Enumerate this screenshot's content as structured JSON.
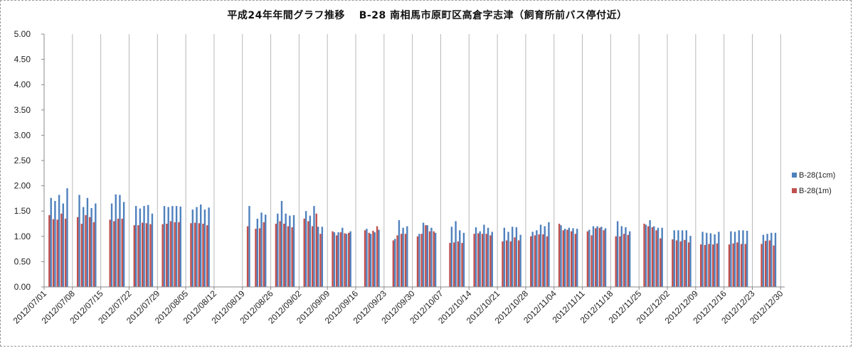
{
  "chart_data": {
    "type": "bar",
    "title": "平成24年年間グラフ推移　 B-28 南相馬市原町区高倉字志津（飼育所前バス停付近）",
    "ylim": [
      0,
      5
    ],
    "y_ticks": [
      "0.00",
      "0.50",
      "1.00",
      "1.50",
      "2.00",
      "2.50",
      "3.00",
      "3.50",
      "4.00",
      "4.50",
      "5.00"
    ],
    "x_ticks": [
      "2012/07/01",
      "2012/07/08",
      "2012/07/15",
      "2012/07/22",
      "2012/07/29",
      "2012/08/05",
      "2012/08/12",
      "2012/08/19",
      "2012/08/26",
      "2012/09/02",
      "2012/09/09",
      "2012/09/16",
      "2012/09/23",
      "2012/09/30",
      "2012/10/07",
      "2012/10/14",
      "2012/10/21",
      "2012/10/28",
      "2012/11/04",
      "2012/11/11",
      "2012/11/18",
      "2012/11/25",
      "2012/12/02",
      "2012/12/09",
      "2012/12/16",
      "2012/12/23",
      "2012/12/30"
    ],
    "x_start": "2012/07/01",
    "x_end": "2012/12/30",
    "grid": "vertical-lines",
    "legend_position": "right",
    "series": [
      {
        "name": "B-28(1cm)",
        "color": "#4f81bd",
        "points": [
          [
            "2012/07/02",
            1.76
          ],
          [
            "2012/07/03",
            1.7
          ],
          [
            "2012/07/04",
            1.82
          ],
          [
            "2012/07/05",
            1.65
          ],
          [
            "2012/07/06",
            1.95
          ],
          [
            "2012/07/09",
            1.82
          ],
          [
            "2012/07/10",
            1.58
          ],
          [
            "2012/07/11",
            1.76
          ],
          [
            "2012/07/12",
            1.56
          ],
          [
            "2012/07/13",
            1.65
          ],
          [
            "2012/07/17",
            1.65
          ],
          [
            "2012/07/18",
            1.83
          ],
          [
            "2012/07/19",
            1.82
          ],
          [
            "2012/07/20",
            1.68
          ],
          [
            "2012/07/23",
            1.6
          ],
          [
            "2012/07/24",
            1.55
          ],
          [
            "2012/07/25",
            1.6
          ],
          [
            "2012/07/26",
            1.62
          ],
          [
            "2012/07/27",
            1.45
          ],
          [
            "2012/07/30",
            1.6
          ],
          [
            "2012/07/31",
            1.58
          ],
          [
            "2012/08/01",
            1.6
          ],
          [
            "2012/08/02",
            1.6
          ],
          [
            "2012/08/03",
            1.59
          ],
          [
            "2012/08/06",
            1.53
          ],
          [
            "2012/08/07",
            1.58
          ],
          [
            "2012/08/08",
            1.63
          ],
          [
            "2012/08/09",
            1.53
          ],
          [
            "2012/08/10",
            1.57
          ],
          [
            "2012/08/20",
            1.6
          ],
          [
            "2012/08/22",
            1.35
          ],
          [
            "2012/08/23",
            1.47
          ],
          [
            "2012/08/24",
            1.43
          ],
          [
            "2012/08/27",
            1.45
          ],
          [
            "2012/08/28",
            1.7
          ],
          [
            "2012/08/29",
            1.45
          ],
          [
            "2012/08/30",
            1.41
          ],
          [
            "2012/08/31",
            1.42
          ],
          [
            "2012/09/03",
            1.5
          ],
          [
            "2012/09/04",
            1.41
          ],
          [
            "2012/09/05",
            1.6
          ],
          [
            "2012/09/06",
            1.19
          ],
          [
            "2012/09/07",
            1.19
          ],
          [
            "2012/09/10",
            1.08
          ],
          [
            "2012/09/11",
            1.08
          ],
          [
            "2012/09/12",
            1.17
          ],
          [
            "2012/09/13",
            1.05
          ],
          [
            "2012/09/14",
            1.1
          ],
          [
            "2012/09/18",
            1.15
          ],
          [
            "2012/09/19",
            1.05
          ],
          [
            "2012/09/20",
            1.08
          ],
          [
            "2012/09/21",
            1.13
          ],
          [
            "2012/09/25",
            0.95
          ],
          [
            "2012/09/26",
            1.32
          ],
          [
            "2012/09/27",
            1.17
          ],
          [
            "2012/09/28",
            1.2
          ],
          [
            "2012/10/01",
            1.05
          ],
          [
            "2012/10/02",
            1.27
          ],
          [
            "2012/10/03",
            1.22
          ],
          [
            "2012/10/04",
            1.17
          ],
          [
            "2012/10/05",
            1.07
          ],
          [
            "2012/10/09",
            1.19
          ],
          [
            "2012/10/10",
            1.3
          ],
          [
            "2012/10/11",
            1.12
          ],
          [
            "2012/10/12",
            1.07
          ],
          [
            "2012/10/15",
            1.18
          ],
          [
            "2012/10/16",
            1.1
          ],
          [
            "2012/10/17",
            1.23
          ],
          [
            "2012/10/18",
            1.17
          ],
          [
            "2012/10/19",
            1.09
          ],
          [
            "2012/10/22",
            1.17
          ],
          [
            "2012/10/23",
            1.09
          ],
          [
            "2012/10/24",
            1.19
          ],
          [
            "2012/10/25",
            1.18
          ],
          [
            "2012/10/26",
            1.03
          ],
          [
            "2012/10/29",
            1.09
          ],
          [
            "2012/10/30",
            1.12
          ],
          [
            "2012/10/31",
            1.23
          ],
          [
            "2012/11/01",
            1.2
          ],
          [
            "2012/11/02",
            1.28
          ],
          [
            "2012/11/05",
            1.22
          ],
          [
            "2012/11/06",
            1.15
          ],
          [
            "2012/11/07",
            1.17
          ],
          [
            "2012/11/08",
            1.16
          ],
          [
            "2012/11/09",
            1.15
          ],
          [
            "2012/11/12",
            1.13
          ],
          [
            "2012/11/13",
            1.2
          ],
          [
            "2012/11/14",
            1.2
          ],
          [
            "2012/11/15",
            1.19
          ],
          [
            "2012/11/16",
            1.16
          ],
          [
            "2012/11/19",
            1.3
          ],
          [
            "2012/11/20",
            1.2
          ],
          [
            "2012/11/21",
            1.18
          ],
          [
            "2012/11/22",
            1.1
          ],
          [
            "2012/11/26",
            1.23
          ],
          [
            "2012/11/27",
            1.32
          ],
          [
            "2012/11/28",
            1.2
          ],
          [
            "2012/11/29",
            1.17
          ],
          [
            "2012/11/30",
            1.17
          ],
          [
            "2012/12/03",
            1.12
          ],
          [
            "2012/12/04",
            1.12
          ],
          [
            "2012/12/05",
            1.12
          ],
          [
            "2012/12/06",
            1.12
          ],
          [
            "2012/12/07",
            1.01
          ],
          [
            "2012/12/10",
            1.09
          ],
          [
            "2012/12/11",
            1.07
          ],
          [
            "2012/12/12",
            1.06
          ],
          [
            "2012/12/13",
            1.04
          ],
          [
            "2012/12/14",
            1.09
          ],
          [
            "2012/12/17",
            1.1
          ],
          [
            "2012/12/18",
            1.09
          ],
          [
            "2012/12/19",
            1.12
          ],
          [
            "2012/12/20",
            1.12
          ],
          [
            "2012/12/21",
            1.11
          ],
          [
            "2012/12/25",
            1.03
          ],
          [
            "2012/12/26",
            1.05
          ],
          [
            "2012/12/27",
            1.07
          ],
          [
            "2012/12/28",
            1.07
          ]
        ]
      },
      {
        "name": "B-28(1m)",
        "color": "#c0504d",
        "points": [
          [
            "2012/07/02",
            1.42
          ],
          [
            "2012/07/03",
            1.34
          ],
          [
            "2012/07/04",
            1.33
          ],
          [
            "2012/07/05",
            1.45
          ],
          [
            "2012/07/06",
            1.35
          ],
          [
            "2012/07/09",
            1.38
          ],
          [
            "2012/07/10",
            1.25
          ],
          [
            "2012/07/11",
            1.42
          ],
          [
            "2012/07/12",
            1.38
          ],
          [
            "2012/07/13",
            1.28
          ],
          [
            "2012/07/17",
            1.33
          ],
          [
            "2012/07/18",
            1.3
          ],
          [
            "2012/07/19",
            1.35
          ],
          [
            "2012/07/20",
            1.35
          ],
          [
            "2012/07/23",
            1.22
          ],
          [
            "2012/07/24",
            1.22
          ],
          [
            "2012/07/25",
            1.27
          ],
          [
            "2012/07/26",
            1.26
          ],
          [
            "2012/07/27",
            1.24
          ],
          [
            "2012/07/30",
            1.24
          ],
          [
            "2012/07/31",
            1.25
          ],
          [
            "2012/08/01",
            1.3
          ],
          [
            "2012/08/02",
            1.28
          ],
          [
            "2012/08/03",
            1.28
          ],
          [
            "2012/08/06",
            1.26
          ],
          [
            "2012/08/07",
            1.27
          ],
          [
            "2012/08/08",
            1.26
          ],
          [
            "2012/08/09",
            1.25
          ],
          [
            "2012/08/10",
            1.22
          ],
          [
            "2012/08/20",
            1.2
          ],
          [
            "2012/08/22",
            1.15
          ],
          [
            "2012/08/23",
            1.16
          ],
          [
            "2012/08/24",
            1.28
          ],
          [
            "2012/08/27",
            1.25
          ],
          [
            "2012/08/28",
            1.3
          ],
          [
            "2012/08/29",
            1.25
          ],
          [
            "2012/08/30",
            1.2
          ],
          [
            "2012/08/31",
            1.18
          ],
          [
            "2012/09/03",
            1.35
          ],
          [
            "2012/09/04",
            1.3
          ],
          [
            "2012/09/05",
            1.2
          ],
          [
            "2012/09/06",
            1.45
          ],
          [
            "2012/09/07",
            1.05
          ],
          [
            "2012/09/10",
            1.1
          ],
          [
            "2012/09/11",
            1.02
          ],
          [
            "2012/09/12",
            1.08
          ],
          [
            "2012/09/13",
            1.06
          ],
          [
            "2012/09/14",
            1.07
          ],
          [
            "2012/09/18",
            1.12
          ],
          [
            "2012/09/19",
            1.07
          ],
          [
            "2012/09/20",
            1.11
          ],
          [
            "2012/09/21",
            1.2
          ],
          [
            "2012/09/25",
            0.92
          ],
          [
            "2012/09/26",
            1.02
          ],
          [
            "2012/09/27",
            1.05
          ],
          [
            "2012/09/28",
            1.05
          ],
          [
            "2012/10/01",
            1.0
          ],
          [
            "2012/10/02",
            1.05
          ],
          [
            "2012/10/03",
            1.22
          ],
          [
            "2012/10/04",
            1.1
          ],
          [
            "2012/10/05",
            1.1
          ],
          [
            "2012/10/09",
            0.87
          ],
          [
            "2012/10/10",
            0.88
          ],
          [
            "2012/10/11",
            0.9
          ],
          [
            "2012/10/12",
            0.87
          ],
          [
            "2012/10/15",
            1.05
          ],
          [
            "2012/10/16",
            1.06
          ],
          [
            "2012/10/17",
            1.05
          ],
          [
            "2012/10/18",
            1.05
          ],
          [
            "2012/10/19",
            1.02
          ],
          [
            "2012/10/22",
            0.9
          ],
          [
            "2012/10/23",
            0.92
          ],
          [
            "2012/10/24",
            0.9
          ],
          [
            "2012/10/25",
            0.98
          ],
          [
            "2012/10/26",
            0.92
          ],
          [
            "2012/10/29",
            1.0
          ],
          [
            "2012/10/30",
            1.02
          ],
          [
            "2012/10/31",
            1.04
          ],
          [
            "2012/11/01",
            1.04
          ],
          [
            "2012/11/02",
            1.0
          ],
          [
            "2012/11/05",
            1.25
          ],
          [
            "2012/11/06",
            1.12
          ],
          [
            "2012/11/07",
            1.13
          ],
          [
            "2012/11/08",
            1.1
          ],
          [
            "2012/11/09",
            1.05
          ],
          [
            "2012/11/12",
            1.1
          ],
          [
            "2012/11/13",
            1.02
          ],
          [
            "2012/11/14",
            1.16
          ],
          [
            "2012/11/15",
            1.17
          ],
          [
            "2012/11/16",
            1.12
          ],
          [
            "2012/11/19",
            1.0
          ],
          [
            "2012/11/20",
            1.0
          ],
          [
            "2012/11/21",
            1.05
          ],
          [
            "2012/11/22",
            1.03
          ],
          [
            "2012/11/26",
            1.25
          ],
          [
            "2012/11/27",
            1.2
          ],
          [
            "2012/11/28",
            1.18
          ],
          [
            "2012/11/29",
            1.12
          ],
          [
            "2012/11/30",
            0.96
          ],
          [
            "2012/12/03",
            0.94
          ],
          [
            "2012/12/04",
            0.92
          ],
          [
            "2012/12/05",
            0.9
          ],
          [
            "2012/12/06",
            0.93
          ],
          [
            "2012/12/07",
            0.88
          ],
          [
            "2012/12/10",
            0.84
          ],
          [
            "2012/12/11",
            0.83
          ],
          [
            "2012/12/12",
            0.85
          ],
          [
            "2012/12/13",
            0.84
          ],
          [
            "2012/12/14",
            0.86
          ],
          [
            "2012/12/17",
            0.84
          ],
          [
            "2012/12/18",
            0.86
          ],
          [
            "2012/12/19",
            0.88
          ],
          [
            "2012/12/20",
            0.85
          ],
          [
            "2012/12/21",
            0.85
          ],
          [
            "2012/12/25",
            0.85
          ],
          [
            "2012/12/26",
            0.91
          ],
          [
            "2012/12/27",
            0.92
          ],
          [
            "2012/12/28",
            0.82
          ]
        ]
      }
    ]
  }
}
